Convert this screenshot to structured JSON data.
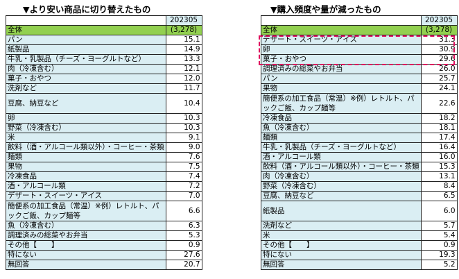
{
  "left": {
    "title": "▼より安い商品に切り替えたもの",
    "column_header": "202305",
    "total_label": "全体",
    "total_value": "(3,278)",
    "rows": [
      {
        "label": "パン",
        "value": "15.1"
      },
      {
        "label": "紙製品",
        "value": "14.9"
      },
      {
        "label": "牛乳・乳製品（チーズ・ヨーグルトなど）",
        "value": "13.3"
      },
      {
        "label": "肉（冷凍含む）",
        "value": "12.1"
      },
      {
        "label": "菓子・おやつ",
        "value": "12.0"
      },
      {
        "label": "洗剤など",
        "value": "11.7"
      },
      {
        "label": "豆腐、納豆など",
        "value": "10.4",
        "tall": true
      },
      {
        "label": "卵",
        "value": "10.3"
      },
      {
        "label": "野菜（冷凍含む）",
        "value": "10.3"
      },
      {
        "label": "米",
        "value": "9.1"
      },
      {
        "label": "飲料（酒・アルコール類以外）・コーヒー・茶類",
        "value": "9.0"
      },
      {
        "label": "麺類",
        "value": "7.6"
      },
      {
        "label": "果物",
        "value": "7.5"
      },
      {
        "label": "冷凍食品",
        "value": "7.4"
      },
      {
        "label": "酒・アルコール類",
        "value": "7.2"
      },
      {
        "label": "デザート・スイーツ・アイス",
        "value": "7.0"
      },
      {
        "label": "簡便系の加工食品（常温）※例）レトルト、パックご飯、カップ麺等",
        "value": "6.6",
        "tall": true
      },
      {
        "label": "魚（冷凍含む）",
        "value": "6.3"
      },
      {
        "label": "調理済みの総菜やお弁当",
        "value": "5.3"
      },
      {
        "label": "その他【　　】",
        "value": "0.9"
      },
      {
        "label": "特にない",
        "value": "27.6"
      },
      {
        "label": "無回答",
        "value": "20.7"
      }
    ]
  },
  "right": {
    "title": "▼購入頻度や量が減ったもの",
    "column_header": "202305",
    "total_label": "全体",
    "total_value": "(3,278)",
    "highlight_color": "#e0115f",
    "rows": [
      {
        "label": "デザート・スイーツ・アイス",
        "value": "31.3"
      },
      {
        "label": "卵",
        "value": "30.9"
      },
      {
        "label": "菓子・おやつ",
        "value": "29.6"
      },
      {
        "label": "調理済みの総菜やお弁当",
        "value": "26.0"
      },
      {
        "label": "パン",
        "value": "25.7"
      },
      {
        "label": "果物",
        "value": "24.1"
      },
      {
        "label": "簡便系の加工食品（常温）※例）レトルト、パックご飯、カップ麺等",
        "value": "22.6",
        "tall": true
      },
      {
        "label": "冷凍食品",
        "value": "18.2"
      },
      {
        "label": "魚（冷凍含む）",
        "value": "18.1"
      },
      {
        "label": "麺類",
        "value": "17.4"
      },
      {
        "label": "牛乳・乳製品（チーズ・ヨーグルトなど）",
        "value": "16.4"
      },
      {
        "label": "酒・アルコール類",
        "value": "16.0"
      },
      {
        "label": "飲料（酒・アルコール類以外）・コーヒー・茶類",
        "value": "15.3"
      },
      {
        "label": "肉（冷凍含む）",
        "value": "13.1"
      },
      {
        "label": "野菜（冷凍含む）",
        "value": "8.4"
      },
      {
        "label": "豆腐、納豆など",
        "value": "6.5"
      },
      {
        "label": "紙製品",
        "value": "6.0",
        "tall": true
      },
      {
        "label": "洗剤など",
        "value": "5.7"
      },
      {
        "label": "米",
        "value": "5.4"
      },
      {
        "label": "その他【　　】",
        "value": "0.9"
      },
      {
        "label": "特にない",
        "value": "19.3"
      },
      {
        "label": "無回答",
        "value": "5.2"
      }
    ]
  }
}
